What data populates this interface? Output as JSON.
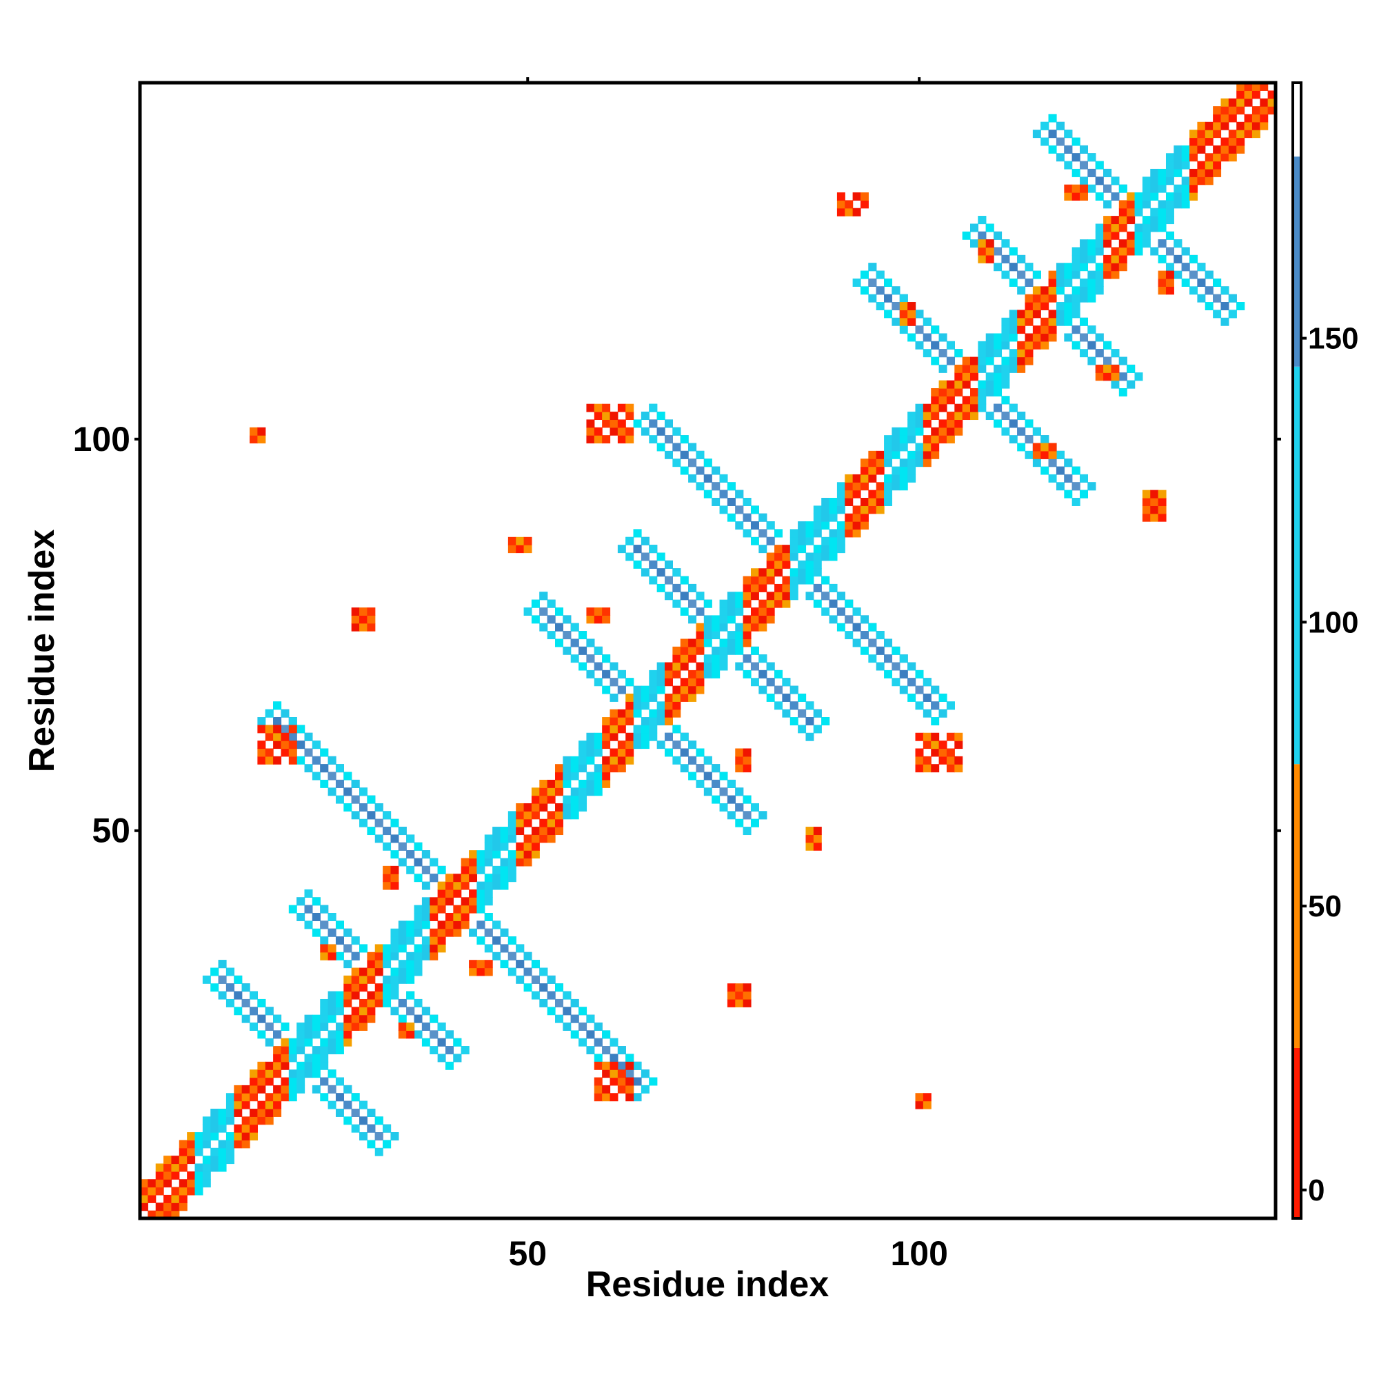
{
  "chart_data": {
    "type": "heatmap",
    "title": "",
    "xlabel": "Residue index",
    "ylabel": "Residue index",
    "xlim": [
      1,
      145
    ],
    "ylim": [
      1,
      145
    ],
    "x_ticks": [
      50,
      100
    ],
    "y_ticks": [
      50,
      100
    ],
    "grid": false,
    "legend": "colorbar-right",
    "colorbar": {
      "ticks": [
        0,
        50,
        100,
        150
      ],
      "range": [
        -5,
        195
      ],
      "bands": [
        {
          "from": -5,
          "to": 25,
          "color": "#ff1a00"
        },
        {
          "from": 25,
          "to": 75,
          "color": "#ff8a00"
        },
        {
          "from": 75,
          "to": 145,
          "color": "#1fd2ee"
        },
        {
          "from": 145,
          "to": 182,
          "color": "#4a8bc8"
        },
        {
          "from": 182,
          "to": 195,
          "color": "#ffffff"
        }
      ]
    },
    "diagonal": {
      "from": 1,
      "to": 145,
      "red_segments": [
        [
          1,
          8
        ],
        [
          14,
          20
        ],
        [
          26,
          32
        ],
        [
          37,
          44
        ],
        [
          50,
          55
        ],
        [
          59,
          64
        ],
        [
          67,
          73
        ],
        [
          77,
          84
        ],
        [
          90,
          96
        ],
        [
          102,
          108
        ],
        [
          112,
          118
        ],
        [
          123,
          128
        ],
        [
          140,
          145
        ]
      ],
      "cyan_segments": [
        [
          8,
          12
        ],
        [
          20,
          26
        ],
        [
          32,
          37
        ],
        [
          44,
          48
        ],
        [
          55,
          59
        ],
        [
          64,
          67
        ],
        [
          73,
          77
        ],
        [
          84,
          90
        ],
        [
          96,
          100
        ],
        [
          108,
          112
        ],
        [
          118,
          123
        ],
        [
          128,
          134
        ]
      ]
    },
    "arms": [
      {
        "center": [
          21,
          21
        ],
        "length": 11,
        "color": "cyan"
      },
      {
        "center": [
          31,
          31
        ],
        "length": 10,
        "color": "cyan"
      },
      {
        "center": [
          41,
          41
        ],
        "length": 24,
        "color": "cyan"
      },
      {
        "center": [
          65,
          65
        ],
        "length": 14,
        "color": "cyan"
      },
      {
        "center": [
          75,
          75
        ],
        "length": 12,
        "color": "cyan"
      },
      {
        "center": [
          84,
          84
        ],
        "length": 19,
        "color": "cyan"
      },
      {
        "center": [
          107,
          107
        ],
        "length": 14,
        "color": "cyan"
      },
      {
        "center": [
          117,
          117
        ],
        "length": 10,
        "color": "cyan"
      },
      {
        "center": [
          128,
          128
        ],
        "length": 12,
        "color": "cyan"
      }
    ],
    "patches": [
      {
        "x": 16,
        "y": 59,
        "w": 5,
        "h": 5,
        "color": "red"
      },
      {
        "x": 59,
        "y": 16,
        "w": 5,
        "h": 5,
        "color": "red"
      },
      {
        "x": 58,
        "y": 100,
        "w": 6,
        "h": 5,
        "color": "red"
      },
      {
        "x": 100,
        "y": 58,
        "w": 6,
        "h": 5,
        "color": "red"
      },
      {
        "x": 15,
        "y": 100,
        "w": 2,
        "h": 2,
        "color": "red"
      },
      {
        "x": 100,
        "y": 15,
        "w": 2,
        "h": 2,
        "color": "red"
      },
      {
        "x": 90,
        "y": 129,
        "w": 4,
        "h": 3,
        "color": "red"
      },
      {
        "x": 129,
        "y": 90,
        "w": 3,
        "h": 4,
        "color": "red"
      },
      {
        "x": 28,
        "y": 76,
        "w": 3,
        "h": 3,
        "color": "red"
      },
      {
        "x": 76,
        "y": 28,
        "w": 3,
        "h": 3,
        "color": "red"
      },
      {
        "x": 48,
        "y": 86,
        "w": 3,
        "h": 2,
        "color": "orange"
      },
      {
        "x": 86,
        "y": 48,
        "w": 2,
        "h": 3,
        "color": "orange"
      },
      {
        "x": 58,
        "y": 77,
        "w": 3,
        "h": 2,
        "color": "orange"
      },
      {
        "x": 77,
        "y": 58,
        "w": 2,
        "h": 3,
        "color": "orange"
      },
      {
        "x": 34,
        "y": 24,
        "w": 2,
        "h": 2,
        "color": "orange"
      },
      {
        "x": 24,
        "y": 34,
        "w": 2,
        "h": 2,
        "color": "orange"
      },
      {
        "x": 43,
        "y": 32,
        "w": 3,
        "h": 2,
        "color": "orange"
      },
      {
        "x": 32,
        "y": 43,
        "w": 2,
        "h": 3,
        "color": "orange"
      },
      {
        "x": 115,
        "y": 98,
        "w": 3,
        "h": 2,
        "color": "orange"
      },
      {
        "x": 98,
        "y": 115,
        "w": 2,
        "h": 3,
        "color": "orange"
      },
      {
        "x": 119,
        "y": 131,
        "w": 3,
        "h": 2,
        "color": "orange"
      },
      {
        "x": 131,
        "y": 119,
        "w": 2,
        "h": 3,
        "color": "orange"
      },
      {
        "x": 123,
        "y": 108,
        "w": 3,
        "h": 2,
        "color": "orange"
      },
      {
        "x": 108,
        "y": 123,
        "w": 2,
        "h": 3,
        "color": "orange"
      }
    ]
  }
}
